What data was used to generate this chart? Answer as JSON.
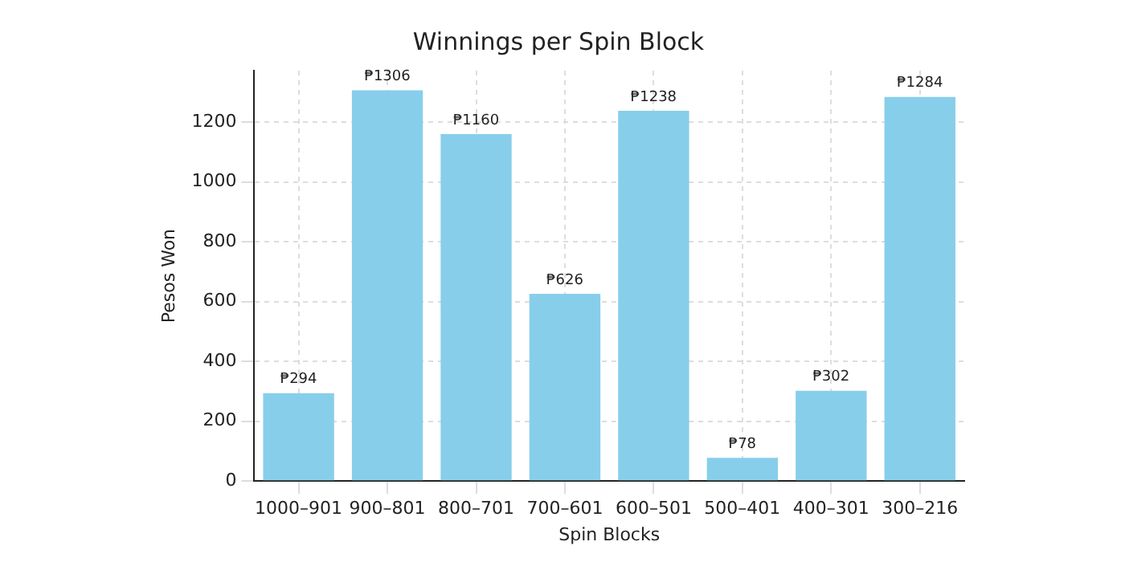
{
  "chart_data": {
    "type": "bar",
    "title": "Winnings per Spin Block",
    "xlabel": "Spin Blocks",
    "ylabel": "Pesos Won",
    "categories": [
      "1000–901",
      "900–801",
      "800–701",
      "700–601",
      "600–501",
      "500–401",
      "400–301",
      "300–216"
    ],
    "values": [
      294,
      1306,
      1160,
      626,
      1238,
      78,
      302,
      1284
    ],
    "value_labels": [
      "₱294",
      "₱1306",
      "₱1160",
      "₱626",
      "₱1238",
      "₱78",
      "₱302",
      "₱1284"
    ],
    "color": "#87ceeb",
    "ylim": [
      0,
      1372
    ],
    "yticks": [
      0,
      200,
      400,
      600,
      800,
      1000,
      1200
    ],
    "grid": true
  }
}
